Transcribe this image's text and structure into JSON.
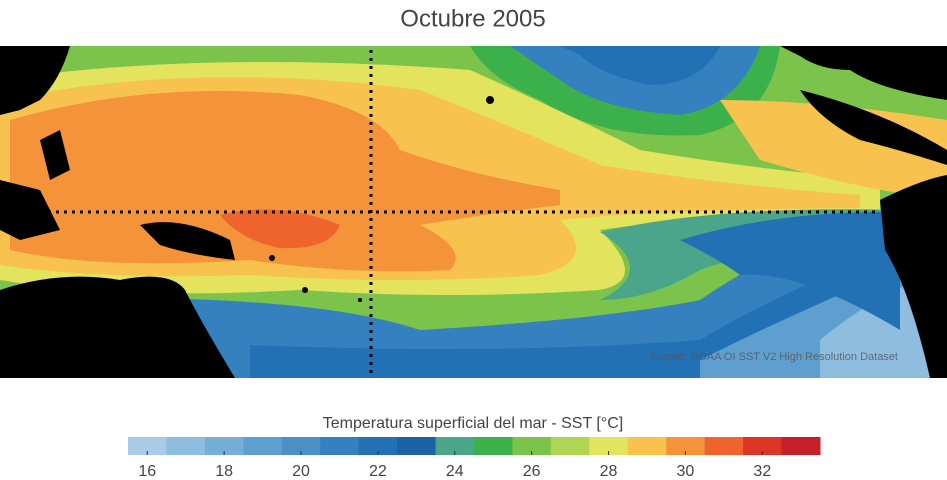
{
  "title": "Octubre 2005",
  "source": "Fuente: NOAA OI SST V2 High Resolution Dataset",
  "colorbar": {
    "label": "Temperatura superficial del mar - SST  [°C]",
    "range": [
      15.5,
      33.5
    ],
    "ticks": [
      16,
      18,
      20,
      22,
      24,
      26,
      28,
      30,
      32
    ],
    "colors": [
      "#a9cde8",
      "#8ebde0",
      "#76aed8",
      "#5f9fcf",
      "#4a90c7",
      "#3581bf",
      "#2271b4",
      "#1b63a4",
      "#4aa58a",
      "#3cb14b",
      "#7cc34c",
      "#b0d454",
      "#e3e35d",
      "#f8c24e",
      "#f4933a",
      "#ee642c",
      "#de3426",
      "#c41f2a"
    ]
  }
}
